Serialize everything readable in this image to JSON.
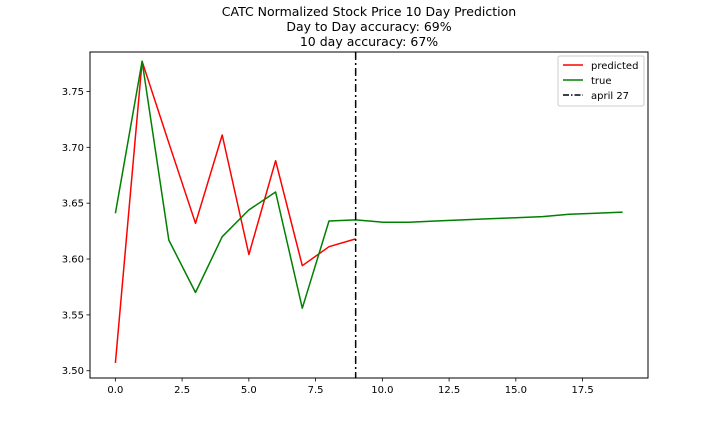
{
  "chart_data": {
    "type": "line",
    "title_lines": [
      "CATC Normalized Stock Price 10 Day Prediction",
      "Day to Day accuracy: 69%",
      "10 day accuracy: 67%"
    ],
    "xlabel": "",
    "ylabel": "",
    "xlim": [
      -0.95,
      19.95
    ],
    "ylim": [
      3.4935,
      3.7853
    ],
    "x_ticks": [
      0.0,
      2.5,
      5.0,
      7.5,
      10.0,
      12.5,
      15.0,
      17.5
    ],
    "x_tick_labels": [
      "0.0",
      "2.5",
      "5.0",
      "7.5",
      "10.0",
      "12.5",
      "15.0",
      "17.5"
    ],
    "y_ticks": [
      3.5,
      3.55,
      3.6,
      3.65,
      3.7,
      3.75
    ],
    "y_tick_labels": [
      "3.50",
      "3.55",
      "3.60",
      "3.65",
      "3.70",
      "3.75"
    ],
    "grid": false,
    "legend_position": "top-right",
    "series": [
      {
        "name": "predicted",
        "color": "#ff0000",
        "style": "solid",
        "x": [
          0,
          1,
          2,
          3,
          4,
          5,
          6,
          7,
          8,
          9
        ],
        "y": [
          3.507,
          3.777,
          3.704,
          3.632,
          3.711,
          3.604,
          3.688,
          3.594,
          3.611,
          3.618
        ]
      },
      {
        "name": "true",
        "color": "#008000",
        "style": "solid",
        "x": [
          0,
          1,
          2,
          3,
          4,
          5,
          6,
          7,
          8,
          9,
          10,
          11,
          12,
          13,
          14,
          15,
          16,
          17,
          18,
          19
        ],
        "y": [
          3.641,
          3.777,
          3.617,
          3.57,
          3.62,
          3.644,
          3.66,
          3.556,
          3.634,
          3.635,
          3.633,
          3.633,
          3.634,
          3.635,
          3.636,
          3.637,
          3.638,
          3.64,
          3.641,
          3.642
        ]
      }
    ],
    "vlines": [
      {
        "name": "april 27",
        "x": 9,
        "color": "#000000",
        "style": "dashdot"
      }
    ]
  }
}
